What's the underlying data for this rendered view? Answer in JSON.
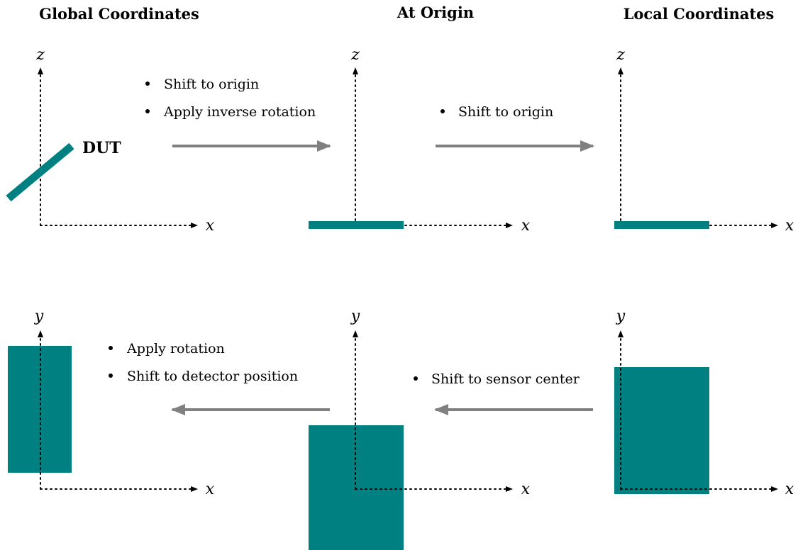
{
  "columns": [
    "Global Coordinates",
    "At Origin",
    "Local Coordinates"
  ],
  "top_row": {
    "panels": [
      {
        "vertical_axis": "z",
        "horizontal_axis": "x"
      },
      {
        "vertical_axis": "z",
        "horizontal_axis": "x"
      },
      {
        "vertical_axis": "z",
        "horizontal_axis": "x"
      }
    ],
    "dut_label": "DUT",
    "steps": [
      [
        "Shift to origin",
        "Apply inverse rotation"
      ],
      [
        "Shift to origin"
      ]
    ]
  },
  "bottom_row": {
    "panels": [
      {
        "vertical_axis": "y",
        "horizontal_axis": "x"
      },
      {
        "vertical_axis": "y",
        "horizontal_axis": "x"
      },
      {
        "vertical_axis": "y",
        "horizontal_axis": "x"
      }
    ],
    "steps": [
      [
        "Apply rotation",
        "Shift to detector position"
      ],
      [
        "Shift to sensor center"
      ]
    ]
  }
}
